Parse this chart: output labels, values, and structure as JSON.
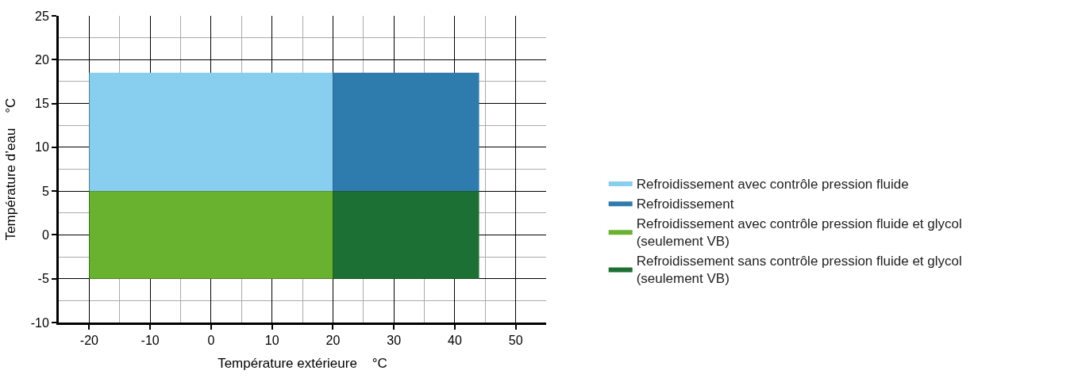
{
  "chart_data": {
    "type": "area",
    "xlabel": "Température extérieure    °C",
    "ylabel": "Température d’eau    °C",
    "xlim": [
      -25,
      55
    ],
    "xticks": [
      -20,
      -10,
      0,
      10,
      20,
      30,
      40,
      50
    ],
    "ylim": [
      -10,
      25
    ],
    "yticks": [
      -10,
      -5,
      0,
      5,
      10,
      15,
      20,
      25
    ],
    "grid": true,
    "legend": "right",
    "series": [
      {
        "name": "Refroidissement avec contrôle pression fluide",
        "color": "#87ceef",
        "x": [
          -20,
          20,
          20,
          -20
        ],
        "values": [
          5,
          5,
          18.5,
          18.5
        ]
      },
      {
        "name": "Refroidissement",
        "color": "#2e7bad",
        "x": [
          20,
          44,
          44,
          20
        ],
        "values": [
          5,
          5,
          18.5,
          18.5
        ]
      },
      {
        "name": "Refroidissement avec contrôle pression fluide et glycol (seulement VB)",
        "color": "#68b22f",
        "x": [
          -20,
          20,
          20,
          -20
        ],
        "values": [
          -5,
          -5,
          5,
          5
        ]
      },
      {
        "name": "Refroidissement sans contrôle pression fluide et glycol (seulement VB)",
        "color": "#1d7033",
        "x": [
          20,
          44,
          44,
          20
        ],
        "values": [
          -5,
          -5,
          5,
          5
        ]
      }
    ]
  }
}
